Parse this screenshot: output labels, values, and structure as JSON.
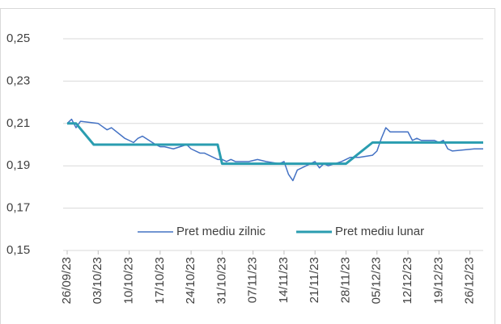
{
  "chart_data": {
    "type": "line",
    "x": [
      "26/09/23",
      "27/09/23",
      "28/09/23",
      "29/09/23",
      "03/10/23",
      "05/10/23",
      "06/10/23",
      "09/10/23",
      "10/10/23",
      "11/10/23",
      "12/10/23",
      "13/10/23",
      "16/10/23",
      "17/10/23",
      "18/10/23",
      "20/10/23",
      "23/10/23",
      "24/10/23",
      "26/10/23",
      "27/10/23",
      "30/10/23",
      "31/10/23",
      "01/11/23",
      "02/11/23",
      "03/11/23",
      "06/11/23",
      "08/11/23",
      "10/11/23",
      "13/11/23",
      "14/11/23",
      "15/11/23",
      "16/11/23",
      "17/11/23",
      "20/11/23",
      "21/11/23",
      "22/11/23",
      "23/11/23",
      "24/11/23",
      "27/11/23",
      "28/11/23",
      "29/11/23",
      "01/12/23",
      "04/12/23",
      "05/12/23",
      "06/12/23",
      "07/12/23",
      "08/12/23",
      "11/12/23",
      "12/12/23",
      "13/12/23",
      "14/12/23",
      "15/12/23",
      "18/12/23",
      "19/12/23",
      "20/12/23",
      "21/12/23",
      "22/12/23",
      "27/12/23",
      "29/12/23"
    ],
    "series": [
      {
        "name": "Pret mediu zilnic",
        "color": "#4472c4",
        "width": 1.5,
        "values": [
          0.21,
          0.212,
          0.208,
          0.211,
          0.21,
          0.207,
          0.208,
          0.203,
          0.202,
          0.201,
          0.203,
          0.204,
          0.2,
          0.199,
          0.199,
          0.198,
          0.2,
          0.198,
          0.196,
          0.196,
          0.193,
          0.193,
          0.192,
          0.193,
          0.192,
          0.192,
          0.193,
          0.192,
          0.191,
          0.192,
          0.186,
          0.183,
          0.188,
          0.191,
          0.192,
          0.189,
          0.191,
          0.19,
          0.192,
          0.193,
          0.194,
          0.194,
          0.195,
          0.197,
          0.203,
          0.208,
          0.206,
          0.206,
          0.206,
          0.202,
          0.203,
          0.202,
          0.202,
          0.201,
          0.202,
          0.198,
          0.197,
          0.198,
          0.198
        ]
      },
      {
        "name": "Pret mediu lunar",
        "color": "#2a9db0",
        "width": 3,
        "x": [
          "26/09/23",
          "28/09/23",
          "02/10/23",
          "30/10/23",
          "31/10/23",
          "28/11/23",
          "04/12/23",
          "29/12/23"
        ],
        "values": [
          0.21,
          0.21,
          0.2,
          0.2,
          0.191,
          0.191,
          0.201,
          0.201
        ]
      }
    ],
    "xlim": [
      "26/09/23",
      "29/12/23"
    ],
    "xticks": [
      "26/09/23",
      "03/10/23",
      "10/10/23",
      "17/10/23",
      "24/10/23",
      "31/10/23",
      "07/11/23",
      "14/11/23",
      "21/11/23",
      "28/11/23",
      "05/12/23",
      "12/12/23",
      "19/12/23",
      "26/12/23"
    ],
    "ylim": [
      0.15,
      0.25
    ],
    "yticks": [
      {
        "value": 0.15,
        "label": "0,15"
      },
      {
        "value": 0.17,
        "label": "0,17"
      },
      {
        "value": 0.19,
        "label": "0,19"
      },
      {
        "value": 0.21,
        "label": "0,21"
      },
      {
        "value": 0.23,
        "label": "0,23"
      },
      {
        "value": 0.25,
        "label": "0,25"
      }
    ],
    "grid": true,
    "legend": "lower center"
  }
}
